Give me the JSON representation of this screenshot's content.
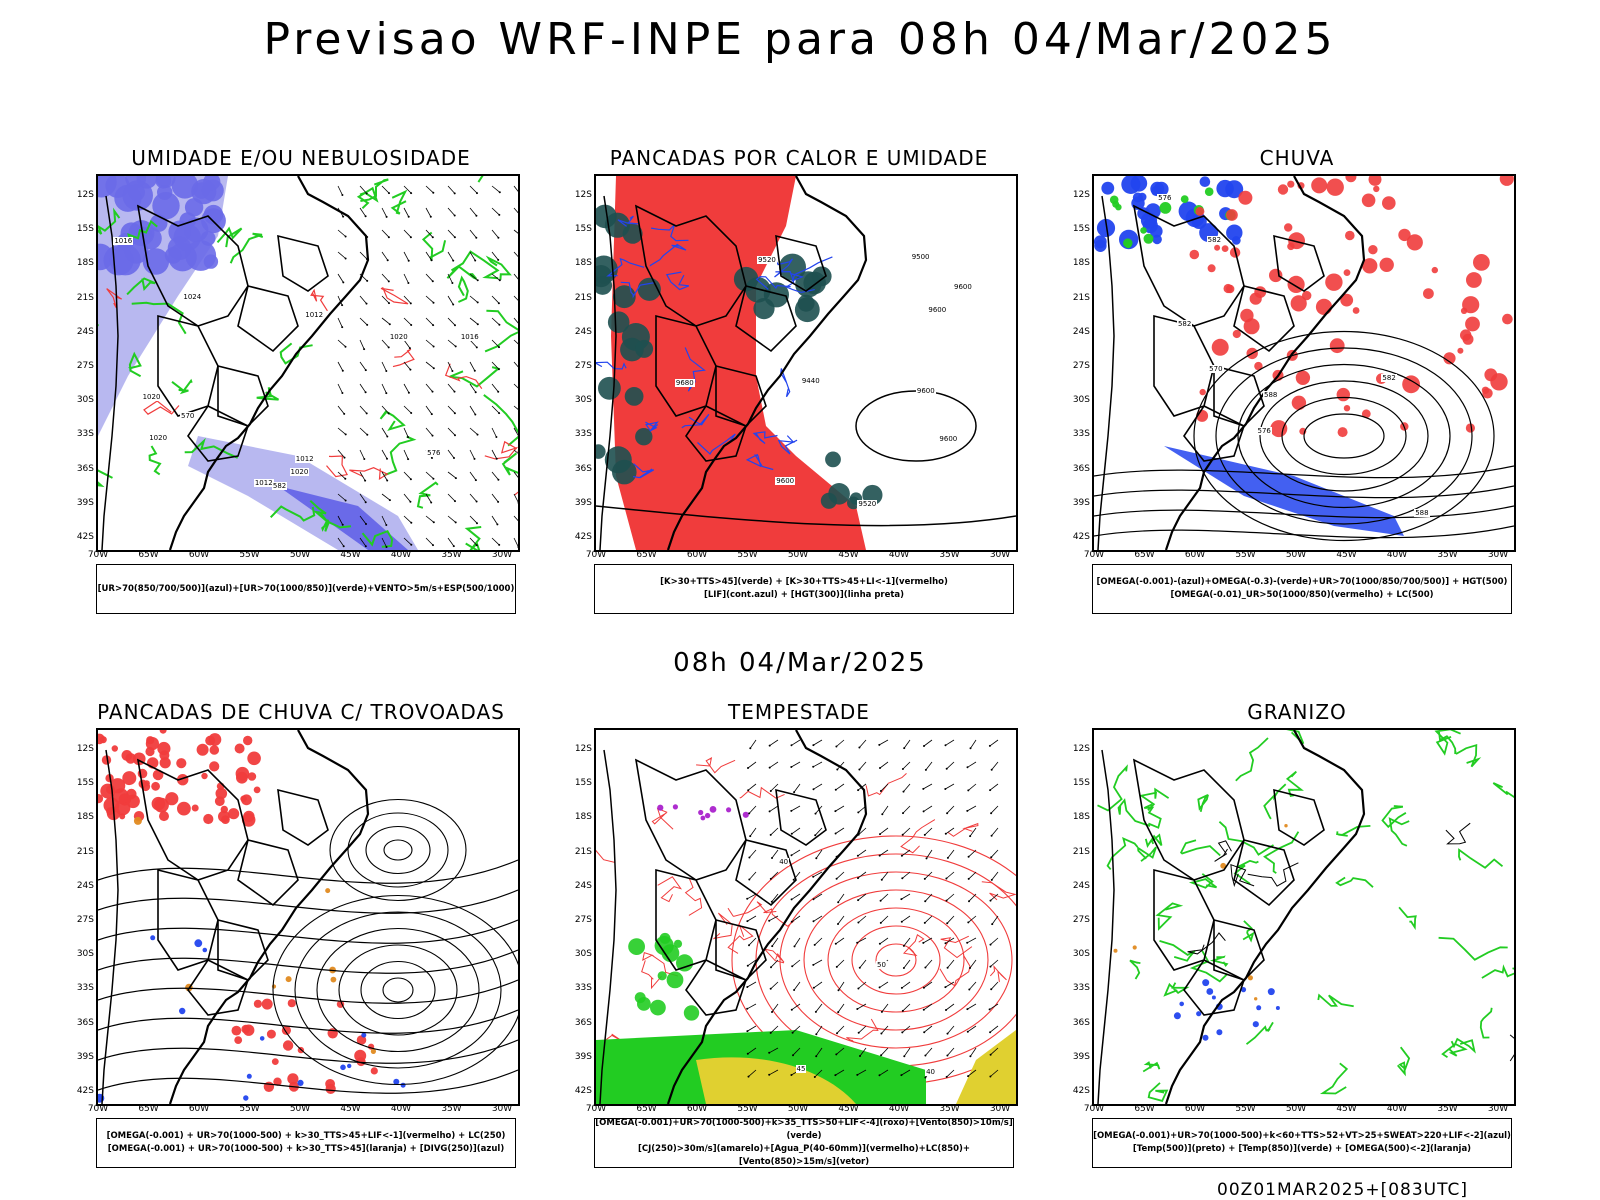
{
  "page": {
    "title": "Previsao WRF-INPE  para 08h 04/Mar/2025",
    "mid_title": "08h 04/Mar/2025",
    "footer": "00Z01MAR2025+[083UTC]"
  },
  "axes": {
    "lat_labels": [
      "12S",
      "15S",
      "18S",
      "21S",
      "24S",
      "27S",
      "30S",
      "33S",
      "36S",
      "39S",
      "42S"
    ],
    "lon_labels": [
      "70W",
      "65W",
      "60W",
      "55W",
      "50W",
      "45W",
      "40W",
      "35W",
      "30W"
    ]
  },
  "panels": [
    {
      "title": "UMIDADE E/OU NEBULOSIDADE",
      "legend": [
        "[UR>70(850/700/500)](azul)+[UR>70(1000/850)](verde)+VENTO>5m/s+ESP(500/1000)"
      ],
      "contour_labels": [
        "1012",
        "1012",
        "1012",
        "1016",
        "1016",
        "1020",
        "1020",
        "1020",
        "1020",
        "1024",
        "570",
        "576",
        "582"
      ]
    },
    {
      "title": "PANCADAS POR CALOR E UMIDADE",
      "legend": [
        "[K>30+TTS>45](verde) + [K>30+TTS>45+LI<-1](vermelho)",
        "[LIF](cont.azul) + [HGT(300)](linha preta)"
      ],
      "contour_labels": [
        "9600",
        "9600",
        "9500",
        "9600",
        "9520",
        "9520",
        "9600",
        "9680",
        "9440",
        "9600"
      ]
    },
    {
      "title": "CHUVA",
      "legend": [
        "[OMEGA(-0.001)-(azul)+OMEGA(-0.3)-(verde)+UR>70(1000/850/700/500)] + HGT(500)",
        "[OMEGA(-0.01)_UR>50(1000/850)(vermelho) + LC(500)"
      ],
      "contour_labels": [
        "588",
        "582",
        "576",
        "582",
        "588",
        "582",
        "576",
        "570"
      ]
    },
    {
      "title": "PANCADAS DE CHUVA C/ TROVOADAS",
      "legend": [
        "[OMEGA(-0.001) + UR>70(1000-500) + k>30_TTS>45+LIF<-1](vermelho) + LC(250)",
        "[OMEGA(-0.001) + UR>70(1000-500) + k>30_TTS>45](laranja) + [DIVG(250)](azul)"
      ],
      "contour_labels": []
    },
    {
      "title": "TEMPESTADE",
      "legend": [
        "[OMEGA(-0.001)+UR>70(1000-500)+k>35_TTS>50+LIF<-4](roxo)+[Vento(850)>10m/s](verde)",
        "[CJ(250)>30m/s](amarelo)+[Agua_P(40-60mm)](vermelho)+LC(850)+[Vento(850)>15m/s](vetor)"
      ],
      "contour_labels": [
        "40",
        "40",
        "50",
        "45"
      ]
    },
    {
      "title": "GRANIZO",
      "legend": [
        "[OMEGA(-0.001)+UR>70(1000-500)+k<60+TTS>52+VT>25+SWEAT>220+LIF<-2](azul)",
        "[Temp(500)](preto) + [Temp(850)](verde) + [OMEGA(500)<-2](laranja)"
      ],
      "contour_labels": []
    }
  ],
  "colors": {
    "blue_humidity": "#6a6ae8",
    "light_blue": "#b8b8f0",
    "green": "#22cc22",
    "red": "#f03c3c",
    "dark_teal": "#1e5050",
    "blue_line": "#2244ee",
    "yellow": "#e0d030",
    "purple": "#aa22cc",
    "orange": "#e08a20"
  }
}
